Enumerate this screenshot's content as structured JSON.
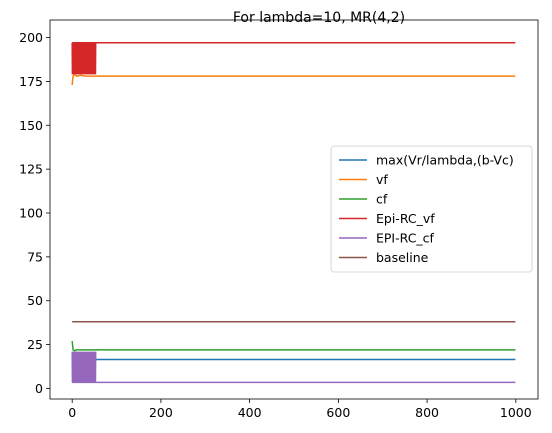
{
  "chart_data": {
    "type": "line",
    "title": "For lambda=10, MR(4,2)",
    "xlabel": "",
    "ylabel": "",
    "xlim": [
      -50,
      1050
    ],
    "ylim": [
      -6,
      210
    ],
    "xticks": [
      0,
      200,
      400,
      600,
      800,
      1000
    ],
    "yticks": [
      0,
      25,
      50,
      75,
      100,
      125,
      150,
      175,
      200
    ],
    "grid": false,
    "legend_position": "center-right",
    "series": [
      {
        "name": "max(Vr/lambda,(b-Vc)",
        "color": "#1f77b4",
        "points": [
          [
            0,
            16.5
          ],
          [
            999,
            16.5
          ]
        ]
      },
      {
        "name": "vf",
        "color": "#ff7f0e",
        "points": [
          [
            0,
            173
          ],
          [
            2,
            178
          ],
          [
            5,
            179
          ],
          [
            10,
            178
          ],
          [
            20,
            178.5
          ],
          [
            30,
            178
          ],
          [
            999,
            178
          ]
        ]
      },
      {
        "name": "cf",
        "color": "#2ca02c",
        "points": [
          [
            0,
            27
          ],
          [
            2,
            22
          ],
          [
            5,
            21.5
          ],
          [
            10,
            22
          ],
          [
            999,
            22
          ]
        ]
      },
      {
        "name": "Epi-RC_vf",
        "color": "#d62728",
        "points": [
          [
            0,
            197
          ],
          [
            999,
            197
          ]
        ],
        "oscillation": {
          "x_range": [
            0,
            53
          ],
          "y_range": [
            179,
            197
          ]
        }
      },
      {
        "name": "EPI-RC_cf",
        "color": "#9467bd",
        "points": [
          [
            0,
            3.5
          ],
          [
            999,
            3.5
          ]
        ],
        "oscillation": {
          "x_range": [
            0,
            53
          ],
          "y_range": [
            3.5,
            21
          ]
        }
      },
      {
        "name": "baseline",
        "color": "#8c564b",
        "points": [
          [
            0,
            38
          ],
          [
            999,
            38
          ]
        ]
      }
    ]
  }
}
